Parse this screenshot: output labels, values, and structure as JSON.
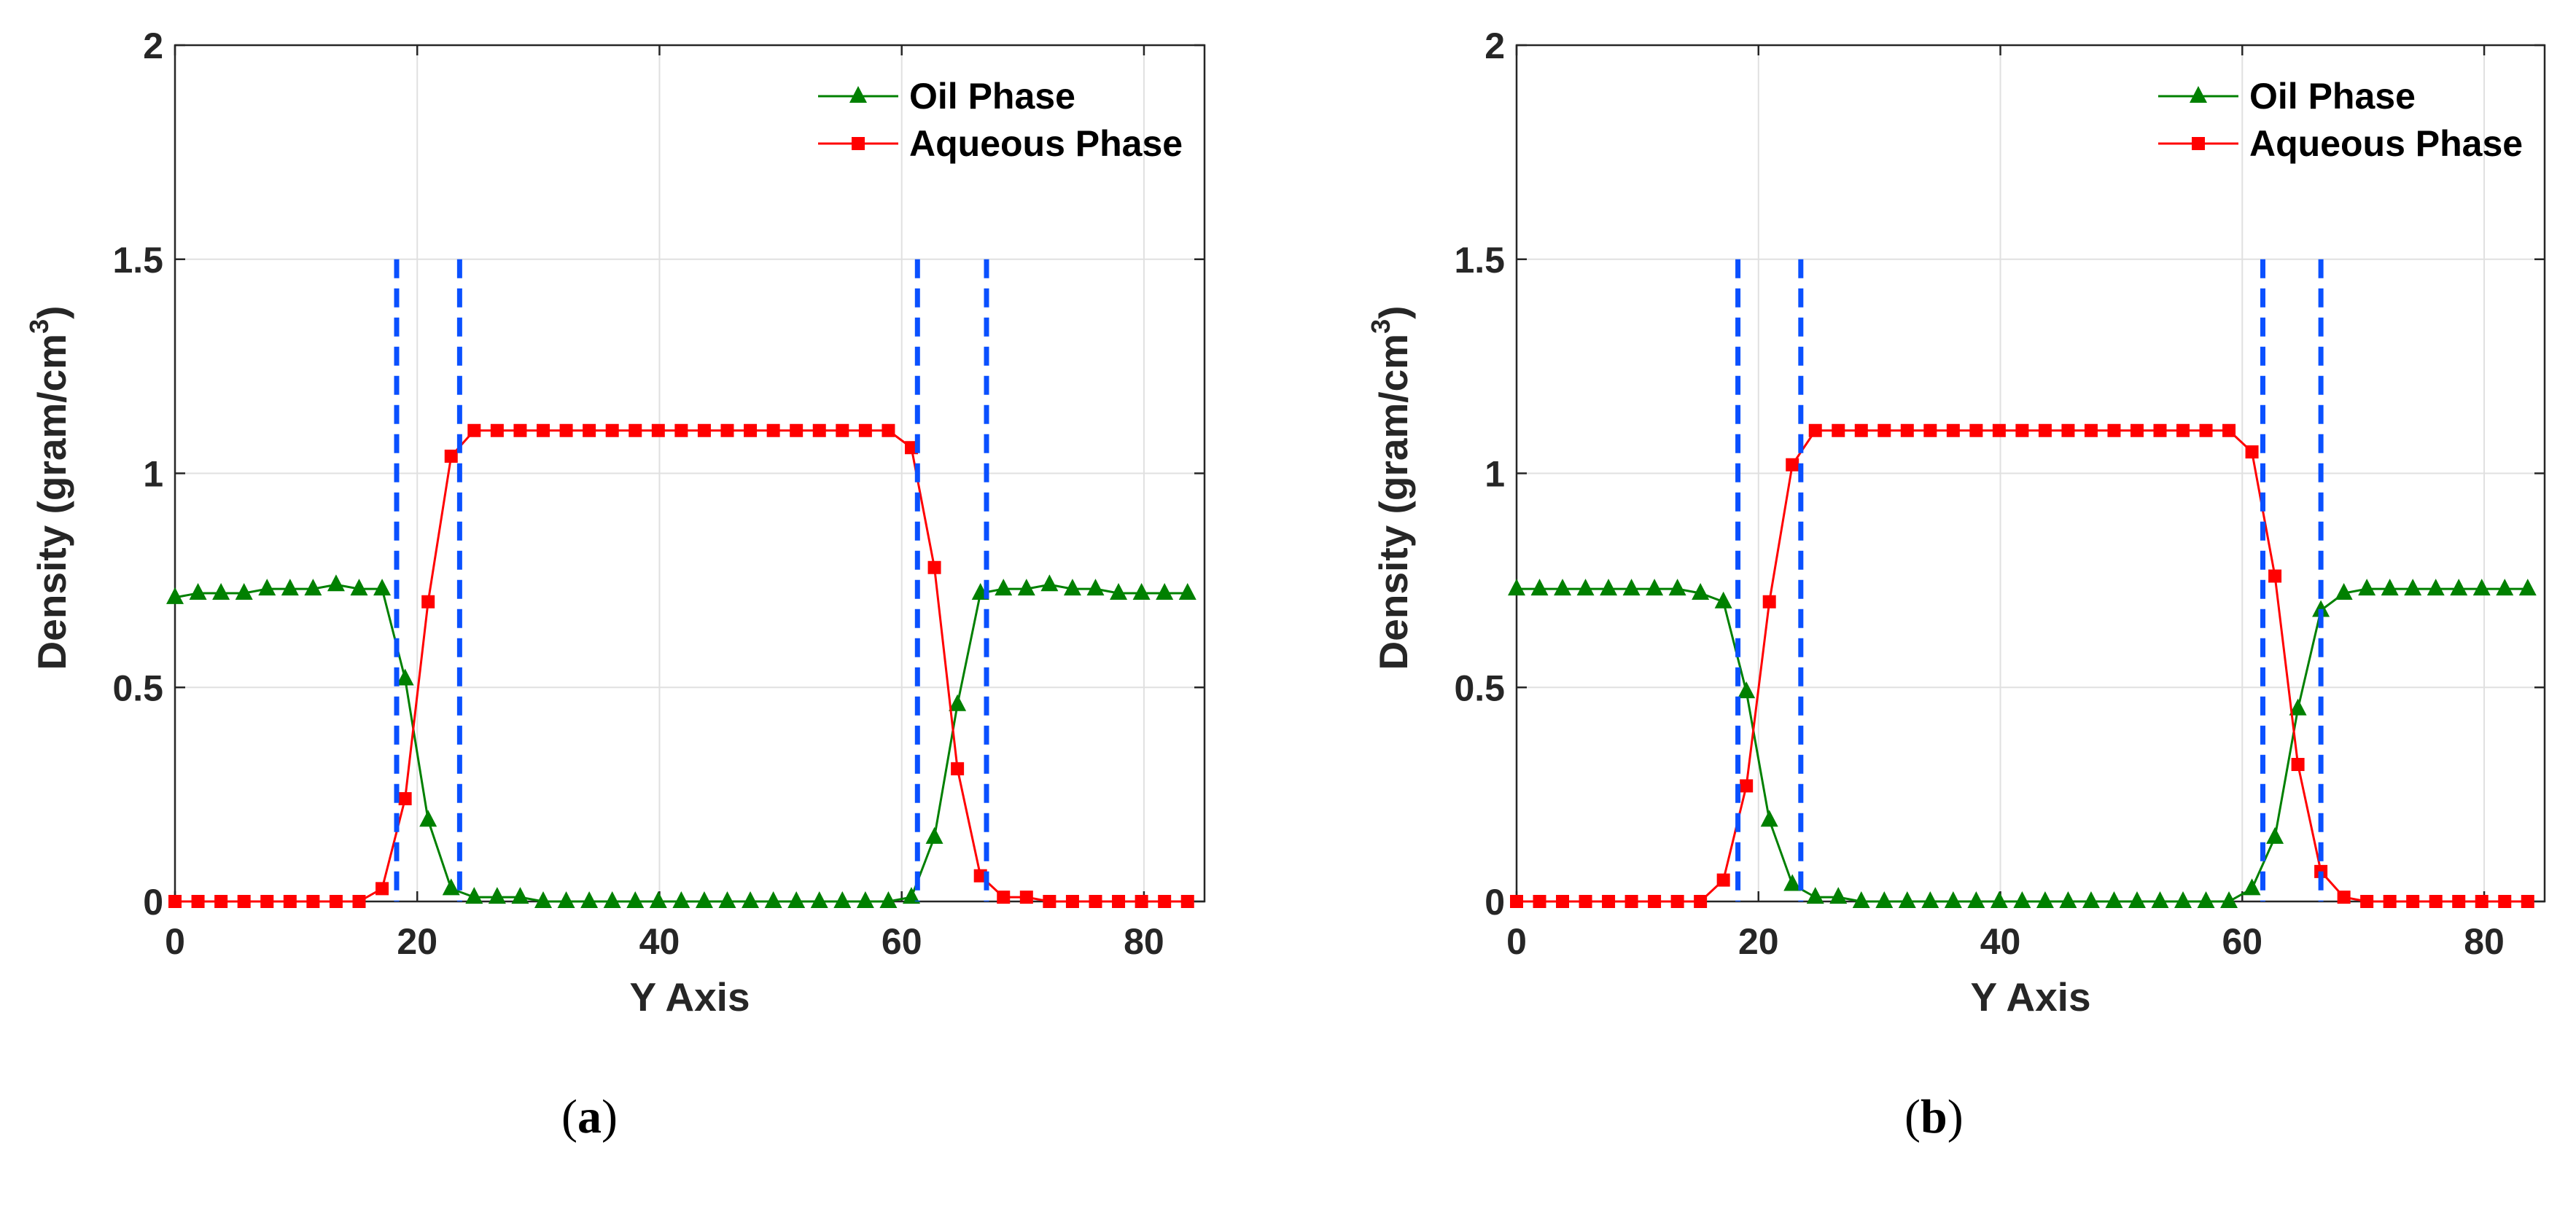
{
  "colors": {
    "oil": "#008000",
    "aqueous": "#ff0000",
    "boundary": "#0a50ff",
    "grid": "#e0e0e0",
    "axis": "#262626"
  },
  "captions": [
    {
      "open": "(",
      "letter": "a",
      "close": ")"
    },
    {
      "open": "(",
      "letter": "b",
      "close": ")"
    }
  ],
  "chart_data": [
    {
      "type": "line",
      "panel": "a",
      "xlabel": "Y Axis",
      "ylabel_main": "Density (gram/cm",
      "ylabel_sup": "3",
      "ylabel_close": ")",
      "xlim": [
        0,
        85
      ],
      "ylim": [
        0,
        2
      ],
      "xticks": [
        "0",
        "20",
        "40",
        "60",
        "80"
      ],
      "yticks": [
        "0",
        "0.5",
        "1",
        "1.5",
        "2"
      ],
      "grid": true,
      "legend": "top-right",
      "boundaries": [
        18.3,
        23.5,
        61.3,
        67.0
      ],
      "x": [
        0,
        1.9,
        3.8,
        5.7,
        7.6,
        9.5,
        11.4,
        13.3,
        15.2,
        17.1,
        19,
        20.9,
        22.8,
        24.7,
        26.6,
        28.5,
        30.4,
        32.3,
        34.2,
        36.1,
        38,
        39.9,
        41.8,
        43.7,
        45.6,
        47.5,
        49.4,
        51.3,
        53.2,
        55.1,
        57,
        58.9,
        60.8,
        62.7,
        64.6,
        66.5,
        68.4,
        70.3,
        72.2,
        74.1,
        76,
        77.9,
        79.8,
        81.7,
        83.6
      ],
      "series": [
        {
          "name": "Oil Phase",
          "marker": "triangle",
          "values": [
            0.71,
            0.72,
            0.72,
            0.72,
            0.73,
            0.73,
            0.73,
            0.74,
            0.73,
            0.73,
            0.52,
            0.19,
            0.03,
            0.01,
            0.01,
            0.01,
            0,
            0,
            0,
            0,
            0,
            0,
            0,
            0,
            0,
            0,
            0,
            0,
            0,
            0,
            0,
            0,
            0.01,
            0.15,
            0.46,
            0.72,
            0.73,
            0.73,
            0.74,
            0.73,
            0.73,
            0.72,
            0.72,
            0.72,
            0.72
          ]
        },
        {
          "name": "Aqueous Phase",
          "marker": "square",
          "values": [
            0,
            0,
            0,
            0,
            0,
            0,
            0,
            0,
            0,
            0.03,
            0.24,
            0.7,
            1.04,
            1.1,
            1.1,
            1.1,
            1.1,
            1.1,
            1.1,
            1.1,
            1.1,
            1.1,
            1.1,
            1.1,
            1.1,
            1.1,
            1.1,
            1.1,
            1.1,
            1.1,
            1.1,
            1.1,
            1.06,
            0.78,
            0.31,
            0.06,
            0.01,
            0.01,
            0,
            0,
            0,
            0,
            0,
            0,
            0
          ]
        }
      ]
    },
    {
      "type": "line",
      "panel": "b",
      "xlabel": "Y Axis",
      "ylabel_main": "Density (gram/cm",
      "ylabel_sup": "3",
      "ylabel_close": ")",
      "xlim": [
        0,
        85
      ],
      "ylim": [
        0,
        2
      ],
      "xticks": [
        "0",
        "20",
        "40",
        "60",
        "80"
      ],
      "yticks": [
        "0",
        "0.5",
        "1",
        "1.5",
        "2"
      ],
      "grid": true,
      "legend": "top-right",
      "boundaries": [
        18.3,
        23.5,
        61.7,
        66.5
      ],
      "x": [
        0,
        1.9,
        3.8,
        5.7,
        7.6,
        9.5,
        11.4,
        13.3,
        15.2,
        17.1,
        19,
        20.9,
        22.8,
        24.7,
        26.6,
        28.5,
        30.4,
        32.3,
        34.2,
        36.1,
        38,
        39.9,
        41.8,
        43.7,
        45.6,
        47.5,
        49.4,
        51.3,
        53.2,
        55.1,
        57,
        58.9,
        60.8,
        62.7,
        64.6,
        66.5,
        68.4,
        70.3,
        72.2,
        74.1,
        76,
        77.9,
        79.8,
        81.7,
        83.6
      ],
      "series": [
        {
          "name": "Oil Phase",
          "marker": "triangle",
          "values": [
            0.73,
            0.73,
            0.73,
            0.73,
            0.73,
            0.73,
            0.73,
            0.73,
            0.72,
            0.7,
            0.49,
            0.19,
            0.04,
            0.01,
            0.01,
            0,
            0,
            0,
            0,
            0,
            0,
            0,
            0,
            0,
            0,
            0,
            0,
            0,
            0,
            0,
            0,
            0,
            0.03,
            0.15,
            0.45,
            0.68,
            0.72,
            0.73,
            0.73,
            0.73,
            0.73,
            0.73,
            0.73,
            0.73,
            0.73
          ]
        },
        {
          "name": "Aqueous Phase",
          "marker": "square",
          "values": [
            0,
            0,
            0,
            0,
            0,
            0,
            0,
            0,
            0,
            0.05,
            0.27,
            0.7,
            1.02,
            1.1,
            1.1,
            1.1,
            1.1,
            1.1,
            1.1,
            1.1,
            1.1,
            1.1,
            1.1,
            1.1,
            1.1,
            1.1,
            1.1,
            1.1,
            1.1,
            1.1,
            1.1,
            1.1,
            1.05,
            0.76,
            0.32,
            0.07,
            0.01,
            0,
            0,
            0,
            0,
            0,
            0,
            0,
            0
          ]
        }
      ]
    }
  ]
}
